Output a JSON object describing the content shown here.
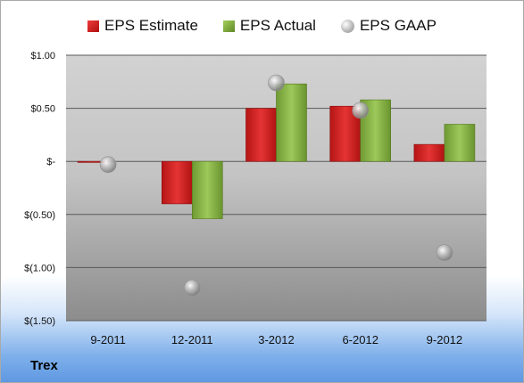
{
  "chart_data": {
    "type": "bar",
    "categories": [
      "9-2011",
      "12-2011",
      "3-2012",
      "6-2012",
      "9-2012"
    ],
    "series": [
      {
        "name": "EPS Estimate",
        "kind": "bar",
        "color": "#cc1f1f",
        "values": [
          -0.01,
          -0.4,
          0.5,
          0.52,
          0.16
        ]
      },
      {
        "name": "EPS Actual",
        "kind": "bar",
        "color": "#8ab445",
        "values": [
          null,
          -0.54,
          0.73,
          0.58,
          0.35
        ]
      },
      {
        "name": "EPS GAAP",
        "kind": "marker",
        "color": "#a8a8a8",
        "values": [
          -0.03,
          -1.19,
          0.74,
          0.48,
          -0.86
        ]
      }
    ],
    "ylim": [
      -1.5,
      1.0
    ],
    "yticks": [
      1.0,
      0.5,
      0.0,
      -0.5,
      -1.0,
      -1.5
    ],
    "ytick_labels": [
      "$1.00",
      "$0.50",
      "$-",
      "$(0.50)",
      "$(1.00)",
      "$(1.50)"
    ],
    "legend_position": "top",
    "grid": true
  },
  "company": "Trex"
}
